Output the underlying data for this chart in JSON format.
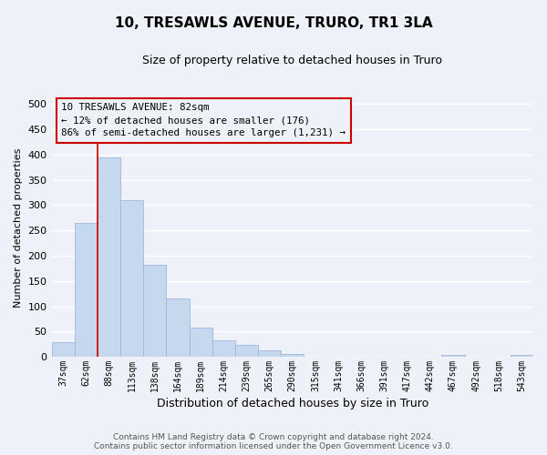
{
  "title": "10, TRESAWLS AVENUE, TRURO, TR1 3LA",
  "subtitle": "Size of property relative to detached houses in Truro",
  "xlabel": "Distribution of detached houses by size in Truro",
  "ylabel": "Number of detached properties",
  "categories": [
    "37sqm",
    "62sqm",
    "88sqm",
    "113sqm",
    "138sqm",
    "164sqm",
    "189sqm",
    "214sqm",
    "239sqm",
    "265sqm",
    "290sqm",
    "315sqm",
    "341sqm",
    "366sqm",
    "391sqm",
    "417sqm",
    "442sqm",
    "467sqm",
    "492sqm",
    "518sqm",
    "543sqm"
  ],
  "values": [
    28,
    265,
    395,
    310,
    182,
    115,
    58,
    32,
    24,
    13,
    6,
    0,
    0,
    0,
    0,
    0,
    0,
    4,
    0,
    0,
    4
  ],
  "bar_color": "#c5d8ed",
  "bar_edge_color": "#a0b8d8",
  "vline_x": 2.0,
  "vline_color": "#cc0000",
  "ylim": [
    0,
    510
  ],
  "yticks": [
    0,
    50,
    100,
    150,
    200,
    250,
    300,
    350,
    400,
    450,
    500
  ],
  "annotation_line1": "10 TRESAWLS AVENUE: 82sqm",
  "annotation_line2": "← 12% of detached houses are smaller (176)",
  "annotation_line3": "86% of semi-detached houses are larger (1,231) →",
  "annotation_box_color": "#cc0000",
  "footer1": "Contains HM Land Registry data © Crown copyright and database right 2024.",
  "footer2": "Contains public sector information licensed under the Open Government Licence v3.0.",
  "bg_color": "#eef2f8",
  "grid_color": "#ffffff",
  "figsize": [
    6.0,
    5.0
  ],
  "dpi": 100
}
